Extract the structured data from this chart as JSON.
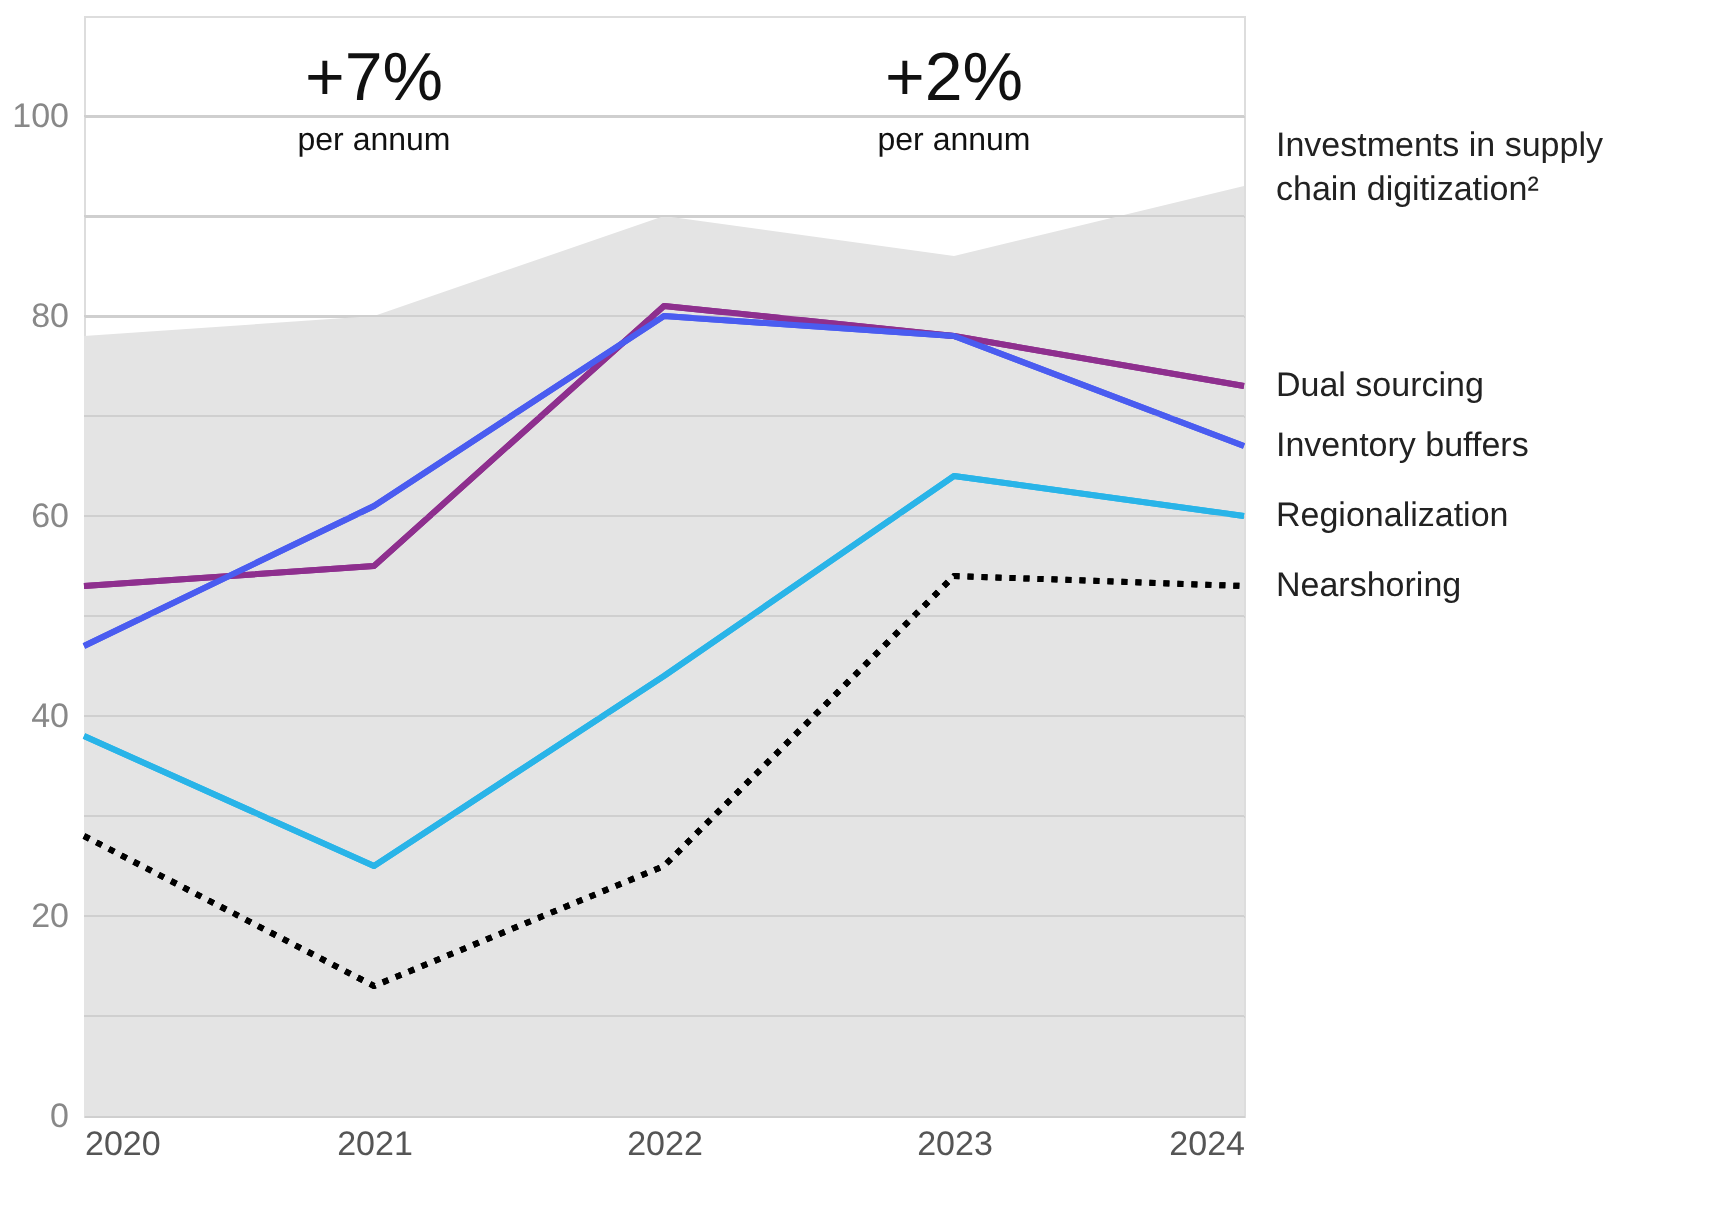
{
  "chart_data": {
    "type": "line",
    "x": [
      2020,
      2021,
      2022,
      2023,
      2024
    ],
    "series": [
      {
        "name": "Investments in supply chain digitization²",
        "type": "area",
        "color": "#e4e4e4",
        "values": [
          78,
          80,
          90,
          86,
          93
        ]
      },
      {
        "name": "Dual sourcing",
        "color": "#8e2f8e",
        "values": [
          53,
          55,
          81,
          78,
          73
        ]
      },
      {
        "name": "Inventory buffers",
        "color": "#4a5cf0",
        "values": [
          47,
          61,
          80,
          78,
          67
        ]
      },
      {
        "name": "Regionalization",
        "color": "#29b4e8",
        "values": [
          38,
          25,
          44,
          64,
          60
        ]
      },
      {
        "name": "Nearshoring",
        "color": "#000000",
        "line_style": "dotted",
        "values": [
          28,
          13,
          25,
          54,
          53
        ]
      }
    ],
    "xlim": [
      2020,
      2024
    ],
    "xticks": [
      2020,
      2021,
      2022,
      2023,
      2024
    ],
    "ylim": [
      0,
      110
    ],
    "yticks": [
      0,
      {
        "value": 10,
        "label": null
      },
      20,
      {
        "value": 30,
        "label": null
      },
      40,
      {
        "value": 50,
        "label": null
      },
      60,
      {
        "value": 70,
        "label": null
      },
      80,
      {
        "value": 90,
        "label": null
      },
      100
    ],
    "grid": "y",
    "legend": false,
    "line_style": "solid",
    "marker": "none",
    "annotations": [
      "+7%",
      "per annum",
      "+2%",
      "per annum"
    ]
  }
}
